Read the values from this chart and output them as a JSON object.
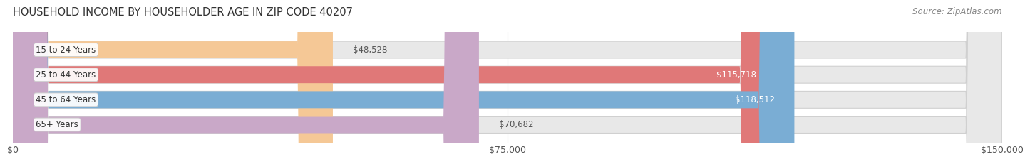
{
  "title": "HOUSEHOLD INCOME BY HOUSEHOLDER AGE IN ZIP CODE 40207",
  "source": "Source: ZipAtlas.com",
  "categories": [
    "15 to 24 Years",
    "25 to 44 Years",
    "45 to 64 Years",
    "65+ Years"
  ],
  "values": [
    48528,
    115718,
    118512,
    70682
  ],
  "bar_colors": [
    "#f5c896",
    "#e07878",
    "#7aadd4",
    "#c9a8c8"
  ],
  "label_colors": [
    "#555555",
    "#ffffff",
    "#ffffff",
    "#555555"
  ],
  "xlim": [
    0,
    150000
  ],
  "xticks": [
    0,
    75000,
    150000
  ],
  "xtick_labels": [
    "$0",
    "$75,000",
    "$150,000"
  ],
  "background_color": "#ffffff",
  "bar_background_color": "#e8e8e8",
  "title_fontsize": 10.5,
  "source_fontsize": 8.5,
  "tick_fontsize": 9,
  "label_fontsize": 8.5,
  "bar_height": 0.68,
  "bar_label_threshold": 90000,
  "grid_color": "#cccccc",
  "bar_bg_edge_color": "#d0d0d0"
}
